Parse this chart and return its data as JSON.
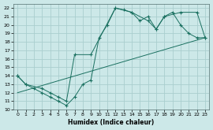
{
  "xlabel": "Humidex (Indice chaleur)",
  "bg_color": "#cce8e8",
  "grid_color": "#aacece",
  "line_color": "#1a7060",
  "xlim": [
    -0.5,
    23.5
  ],
  "ylim": [
    10,
    22.5
  ],
  "xticks": [
    0,
    1,
    2,
    3,
    4,
    5,
    6,
    7,
    8,
    9,
    10,
    11,
    12,
    13,
    14,
    15,
    16,
    17,
    18,
    19,
    20,
    21,
    22,
    23
  ],
  "yticks": [
    10,
    11,
    12,
    13,
    14,
    15,
    16,
    17,
    18,
    19,
    20,
    21,
    22
  ],
  "series1_x": [
    0,
    1,
    2,
    3,
    4,
    5,
    6,
    7,
    8,
    9,
    10,
    11,
    12,
    13,
    14,
    15,
    16,
    17,
    18,
    19,
    20,
    21,
    22,
    23
  ],
  "series1_y": [
    14,
    13,
    12.5,
    12,
    11.5,
    11,
    10.5,
    11.5,
    13,
    13.5,
    18.5,
    20,
    22,
    21.8,
    21.5,
    20.5,
    21,
    19.5,
    21,
    21.5,
    20,
    19,
    18.5,
    18.5
  ],
  "series2_x": [
    0,
    1,
    3,
    4,
    5,
    6,
    7,
    9,
    12,
    14,
    16,
    17,
    18,
    20,
    22,
    23
  ],
  "series2_y": [
    14,
    13,
    12.5,
    12,
    11.5,
    11,
    16.5,
    16.5,
    22,
    21.5,
    20.5,
    19.5,
    21,
    21.5,
    21.5,
    18.5
  ],
  "series3_x": [
    0,
    23
  ],
  "series3_y": [
    12,
    18.5
  ]
}
